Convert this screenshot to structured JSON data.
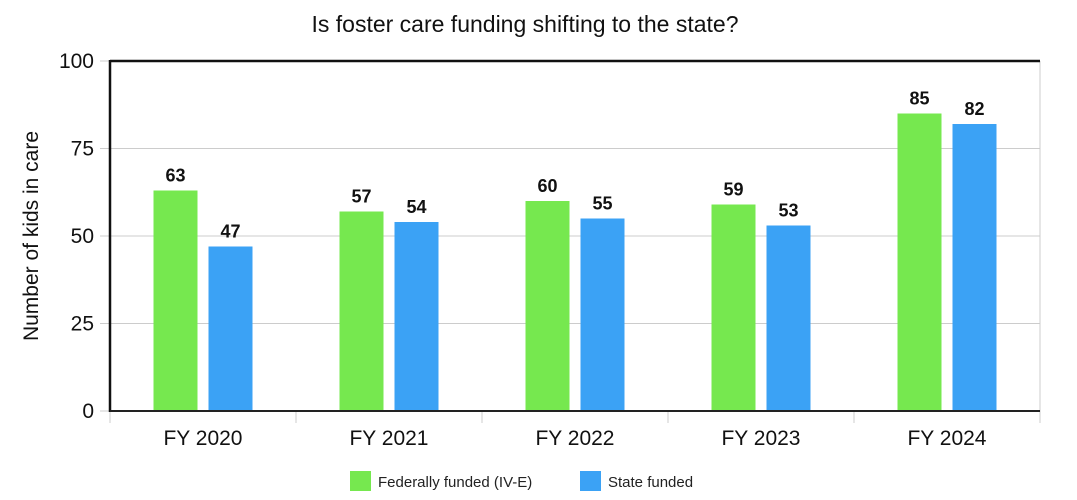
{
  "chart_data": {
    "type": "bar",
    "title": "Is foster care funding shifting to the state?",
    "xlabel": "",
    "ylabel": "Number of kids in care",
    "ylim": [
      0,
      100
    ],
    "yticks": [
      0,
      25,
      50,
      75,
      100
    ],
    "grid": true,
    "legend_position": "bottom",
    "categories": [
      "FY 2020",
      "FY 2021",
      "FY 2022",
      "FY 2023",
      "FY 2024"
    ],
    "series": [
      {
        "name": "Federally funded (IV-E)",
        "color": "#76e84f",
        "values": [
          63,
          57,
          60,
          59,
          85
        ]
      },
      {
        "name": "State funded",
        "color": "#3ba2f5",
        "values": [
          47,
          54,
          55,
          53,
          82
        ]
      }
    ]
  }
}
